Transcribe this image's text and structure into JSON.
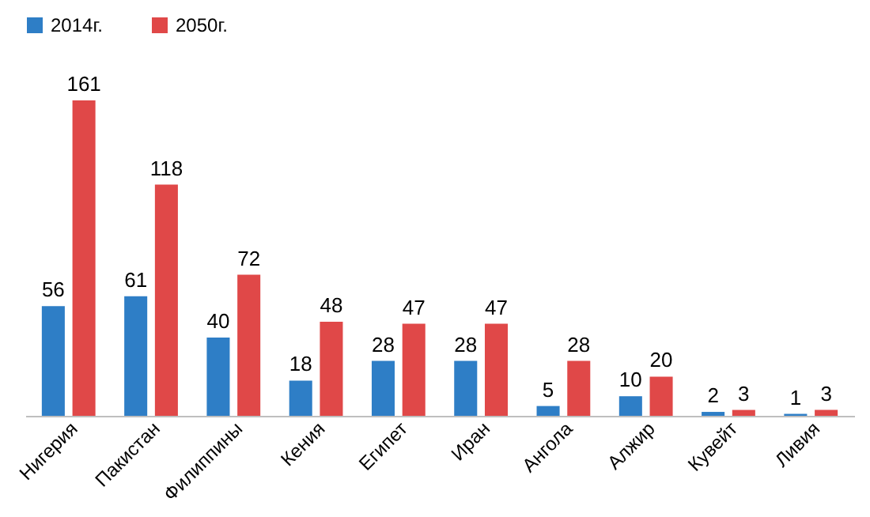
{
  "chart_data": {
    "type": "bar",
    "categories": [
      "Нигерия",
      "Пакистан",
      "Филиппины",
      "Кения",
      "Египет",
      "Иран",
      "Ангола",
      "Алжир",
      "Кувейт",
      "Ливия"
    ],
    "series": [
      {
        "name": "2014г.",
        "color": "#2e7ec6",
        "values": [
          56,
          61,
          40,
          18,
          28,
          28,
          5,
          10,
          2,
          1
        ]
      },
      {
        "name": "2050г.",
        "color": "#e04848",
        "values": [
          161,
          118,
          72,
          48,
          47,
          47,
          28,
          20,
          3,
          3
        ]
      }
    ],
    "data_labels": true,
    "legend": "top",
    "grid": false,
    "tick_labels": "x"
  }
}
